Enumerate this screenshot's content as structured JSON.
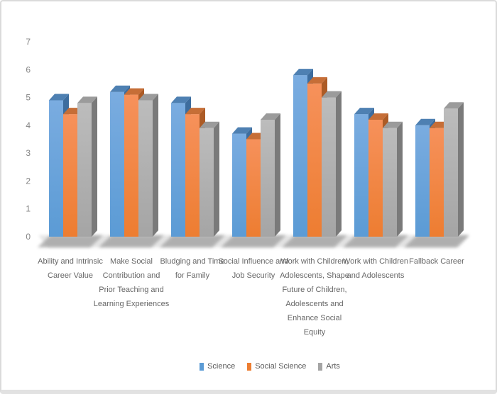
{
  "window": {
    "background": "#ffffff",
    "border_color": "#dbdbdb",
    "border_bottom_color": "#e2e2e2"
  },
  "chart_data": {
    "type": "bar",
    "style": "3d-clustered",
    "title": "",
    "categories": [
      "Ability and Intrinsic Career Value",
      "Make Social Contribution and Prior Teaching and Learning Experiences",
      "Bludging and Time for Family",
      "Social Influence and Job Security",
      "Work with Children, Adolescents, Shape Future of Children, Adolescents and Enhance Social Equity",
      "Work with Children and Adolescents",
      "Fallback Career"
    ],
    "series": [
      {
        "name": "Science",
        "color": "#5B9BD5",
        "color_light": "#7AACE0",
        "color_top": "#4E80B2",
        "color_side": "#3D6D9E",
        "values": [
          4.9,
          5.2,
          4.8,
          3.7,
          5.8,
          4.4,
          4.0
        ]
      },
      {
        "name": "Social Science",
        "color": "#ED7D31",
        "color_light": "#F6915B",
        "color_top": "#C66E37",
        "color_side": "#AC5B26",
        "values": [
          4.4,
          5.1,
          4.4,
          3.5,
          5.5,
          4.2,
          3.9
        ]
      },
      {
        "name": "Arts",
        "color": "#A5A5A5",
        "color_light": "#BCBCBC",
        "color_top": "#9B9B9B",
        "color_side": "#7A7A7A",
        "values": [
          4.8,
          4.9,
          3.9,
          4.2,
          5.0,
          3.9,
          4.6
        ]
      }
    ],
    "ylim": [
      0,
      7
    ],
    "yticks": [
      "0",
      "1",
      "2",
      "3",
      "4",
      "5",
      "6",
      "7"
    ],
    "gridlines": false,
    "legend_position": "bottom",
    "axis_text_color": "#858585",
    "floor_shadow_color": "#a3a3a3"
  },
  "category_lines": [
    [
      "Ability and Intrinsic",
      "Career Value"
    ],
    [
      "Make Social",
      "Contribution and",
      "Prior Teaching and",
      "Learning Experiences"
    ],
    [
      "Bludging and Time",
      "for Family"
    ],
    [
      "Social Influence and",
      "Job Security"
    ],
    [
      "Work with Children,",
      "Adolescents, Shape",
      "Future of Children,",
      "Adolescents and",
      "Enhance Social",
      "Equity"
    ],
    [
      "Work with Children",
      "and Adolescents"
    ],
    [
      "Fallback Career"
    ]
  ]
}
